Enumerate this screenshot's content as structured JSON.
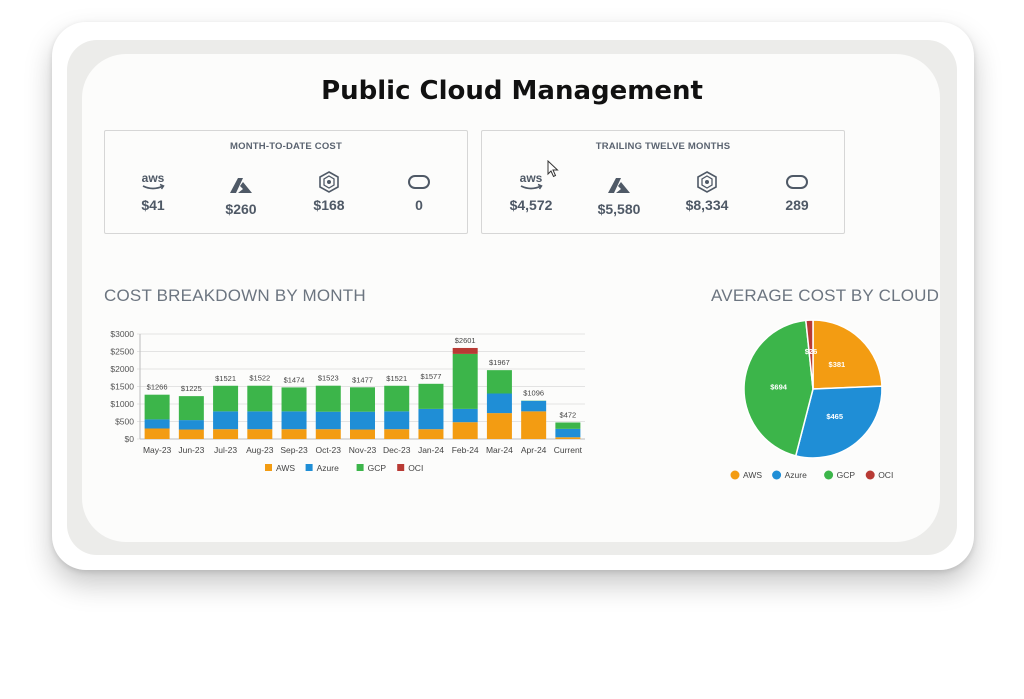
{
  "title": "Public Cloud Management",
  "mtd": {
    "title": "MONTH-TO-DATE COST",
    "items": [
      {
        "icon": "aws-icon",
        "value": "$41"
      },
      {
        "icon": "azure-icon",
        "value": "$260"
      },
      {
        "icon": "gcp-icon",
        "value": "$168"
      },
      {
        "icon": "oci-icon",
        "value": "0"
      }
    ]
  },
  "ttm": {
    "title": "TRAILING TWELVE MONTHS",
    "items": [
      {
        "icon": "aws-icon",
        "value": "$4,572"
      },
      {
        "icon": "azure-icon",
        "value": "$5,580"
      },
      {
        "icon": "gcp-icon",
        "value": "$8,334"
      },
      {
        "icon": "oci-icon",
        "value": "289"
      }
    ]
  },
  "aws_icon_text": "aws",
  "breakdown_title": "COST BREAKDOWN BY MONTH",
  "average_title": "AVERAGE COST BY CLOUD",
  "colors": {
    "AWS": "#f39c12",
    "Azure": "#1f8ed6",
    "GCP": "#3cb54a",
    "OCI": "#b83a34"
  },
  "chart_data": [
    {
      "type": "bar",
      "stacked": true,
      "categories": [
        "May-23",
        "Jun-23",
        "Jul-23",
        "Aug-23",
        "Sep-23",
        "Oct-23",
        "Nov-23",
        "Dec-23",
        "Jan-24",
        "Feb-24",
        "Mar-24",
        "Apr-24",
        "Current"
      ],
      "series": [
        {
          "name": "AWS",
          "values": [
            300,
            270,
            280,
            280,
            280,
            280,
            270,
            280,
            280,
            480,
            740,
            790,
            50
          ]
        },
        {
          "name": "Azure",
          "values": [
            260,
            270,
            510,
            510,
            510,
            500,
            510,
            510,
            580,
            380,
            560,
            300,
            240
          ]
        },
        {
          "name": "GCP",
          "values": [
            706,
            685,
            731,
            732,
            684,
            743,
            697,
            731,
            717,
            1571,
            667,
            6,
            182
          ]
        },
        {
          "name": "OCI",
          "values": [
            0,
            0,
            0,
            0,
            0,
            0,
            0,
            0,
            0,
            170,
            0,
            0,
            0
          ]
        }
      ],
      "totals": [
        "$1266",
        "$1225",
        "$1521",
        "$1522",
        "$1474",
        "$1523",
        "$1477",
        "$1521",
        "$1577",
        "$2601",
        "$1967",
        "$1096",
        "$472"
      ],
      "y_ticks": [
        "$0",
        "$500",
        "$1000",
        "$1500",
        "$2000",
        "$2500",
        "$3000"
      ],
      "ylim": [
        0,
        3000
      ],
      "grid": true,
      "legend": "bottom"
    },
    {
      "type": "pie",
      "labels": [
        "AWS",
        "Azure",
        "GCP",
        "OCI"
      ],
      "values": [
        381,
        465,
        694,
        26
      ],
      "slice_labels": [
        "$381",
        "$465",
        "$694",
        "$26"
      ],
      "legend": "bottom"
    }
  ]
}
